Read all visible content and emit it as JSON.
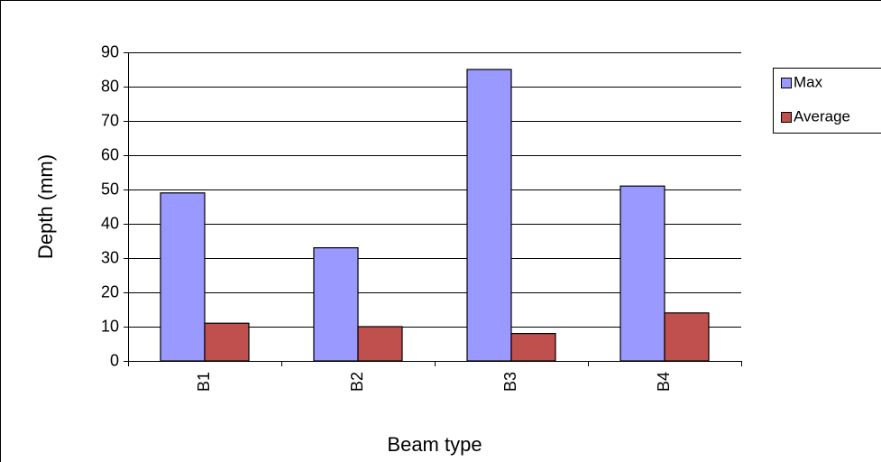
{
  "chart_data": {
    "type": "bar",
    "x_label": "Beam type",
    "y_label": "Depth (mm)",
    "categories": [
      "B1",
      "B2",
      "B3",
      "B4"
    ],
    "series": [
      {
        "name": "Max",
        "color": "#9999ff",
        "values": [
          49,
          33,
          85,
          51
        ]
      },
      {
        "name": "Average",
        "color": "#c0504d",
        "values": [
          11,
          10,
          8,
          14
        ]
      }
    ],
    "ylim": [
      0,
      90
    ],
    "yticks": [
      0,
      10,
      20,
      30,
      40,
      50,
      60,
      70,
      80,
      90
    ],
    "grid": true,
    "legend": "right"
  }
}
